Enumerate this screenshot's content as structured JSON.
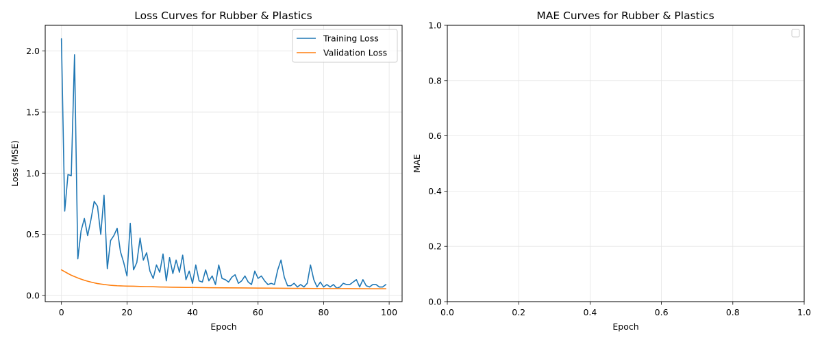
{
  "colors": {
    "training": "#1f77b4",
    "validation": "#ff7f0e",
    "grid": "#e5e5e5"
  },
  "chart_data": [
    {
      "type": "line",
      "title": "Loss Curves for Rubber & Plastics",
      "xlabel": "Epoch",
      "ylabel": "Loss (MSE)",
      "xlim": [
        -4.95,
        103.95
      ],
      "ylim": [
        -0.05,
        2.21
      ],
      "xticks": [
        0,
        20,
        40,
        60,
        80,
        100
      ],
      "yticks": [
        0.0,
        0.5,
        1.0,
        1.5,
        2.0
      ],
      "xtick_labels": [
        "0",
        "20",
        "40",
        "60",
        "80",
        "100"
      ],
      "ytick_labels": [
        "0.0",
        "0.5",
        "1.0",
        "1.5",
        "2.0"
      ],
      "grid": true,
      "legend_position": "top-right",
      "series": [
        {
          "name": "Training Loss",
          "color": "#1f77b4",
          "x": [
            0,
            1,
            2,
            3,
            4,
            5,
            6,
            7,
            8,
            9,
            10,
            11,
            12,
            13,
            14,
            15,
            16,
            17,
            18,
            19,
            20,
            21,
            22,
            23,
            24,
            25,
            26,
            27,
            28,
            29,
            30,
            31,
            32,
            33,
            34,
            35,
            36,
            37,
            38,
            39,
            40,
            41,
            42,
            43,
            44,
            45,
            46,
            47,
            48,
            49,
            50,
            51,
            52,
            53,
            54,
            55,
            56,
            57,
            58,
            59,
            60,
            61,
            62,
            63,
            64,
            65,
            66,
            67,
            68,
            69,
            70,
            71,
            72,
            73,
            74,
            75,
            76,
            77,
            78,
            79,
            80,
            81,
            82,
            83,
            84,
            85,
            86,
            87,
            88,
            89,
            90,
            91,
            92,
            93,
            94,
            95,
            96,
            97,
            98,
            99
          ],
          "y": [
            2.1,
            0.69,
            0.99,
            0.98,
            1.97,
            0.3,
            0.53,
            0.63,
            0.49,
            0.62,
            0.77,
            0.73,
            0.5,
            0.82,
            0.22,
            0.45,
            0.49,
            0.55,
            0.36,
            0.27,
            0.16,
            0.59,
            0.21,
            0.27,
            0.47,
            0.29,
            0.35,
            0.2,
            0.14,
            0.25,
            0.19,
            0.34,
            0.12,
            0.31,
            0.18,
            0.29,
            0.19,
            0.33,
            0.13,
            0.2,
            0.1,
            0.25,
            0.12,
            0.11,
            0.21,
            0.12,
            0.16,
            0.09,
            0.25,
            0.14,
            0.13,
            0.11,
            0.15,
            0.17,
            0.1,
            0.12,
            0.16,
            0.11,
            0.09,
            0.2,
            0.14,
            0.16,
            0.12,
            0.09,
            0.1,
            0.09,
            0.21,
            0.29,
            0.15,
            0.08,
            0.08,
            0.1,
            0.07,
            0.09,
            0.07,
            0.1,
            0.25,
            0.13,
            0.07,
            0.11,
            0.07,
            0.09,
            0.07,
            0.09,
            0.06,
            0.07,
            0.1,
            0.09,
            0.09,
            0.11,
            0.13,
            0.07,
            0.13,
            0.08,
            0.07,
            0.09,
            0.09,
            0.07,
            0.07,
            0.09
          ]
        },
        {
          "name": "Validation Loss",
          "color": "#ff7f0e",
          "x": [
            0,
            1,
            2,
            3,
            4,
            5,
            6,
            7,
            8,
            9,
            10,
            11,
            12,
            13,
            14,
            15,
            16,
            17,
            18,
            19,
            20,
            22,
            24,
            26,
            28,
            30,
            32,
            34,
            36,
            38,
            40,
            45,
            50,
            55,
            60,
            65,
            70,
            75,
            80,
            85,
            90,
            95,
            99
          ],
          "y": [
            0.21,
            0.195,
            0.18,
            0.166,
            0.155,
            0.144,
            0.134,
            0.125,
            0.117,
            0.11,
            0.104,
            0.098,
            0.094,
            0.09,
            0.087,
            0.084,
            0.082,
            0.08,
            0.079,
            0.078,
            0.077,
            0.076,
            0.074,
            0.073,
            0.072,
            0.07,
            0.069,
            0.068,
            0.067,
            0.066,
            0.066,
            0.064,
            0.063,
            0.062,
            0.061,
            0.06,
            0.059,
            0.058,
            0.057,
            0.057,
            0.056,
            0.055,
            0.055
          ]
        }
      ]
    },
    {
      "type": "line",
      "title": "MAE Curves for Rubber & Plastics",
      "xlabel": "Epoch",
      "ylabel": "MAE",
      "xlim": [
        0.0,
        1.0
      ],
      "ylim": [
        0.0,
        1.0
      ],
      "xticks": [
        0.0,
        0.2,
        0.4,
        0.6,
        0.8,
        1.0
      ],
      "yticks": [
        0.0,
        0.2,
        0.4,
        0.6,
        0.8,
        1.0
      ],
      "xtick_labels": [
        "0.0",
        "0.2",
        "0.4",
        "0.6",
        "0.8",
        "1.0"
      ],
      "ytick_labels": [
        "0.0",
        "0.2",
        "0.4",
        "0.6",
        "0.8",
        "1.0"
      ],
      "grid": true,
      "legend_position": "top-right",
      "series": []
    }
  ]
}
